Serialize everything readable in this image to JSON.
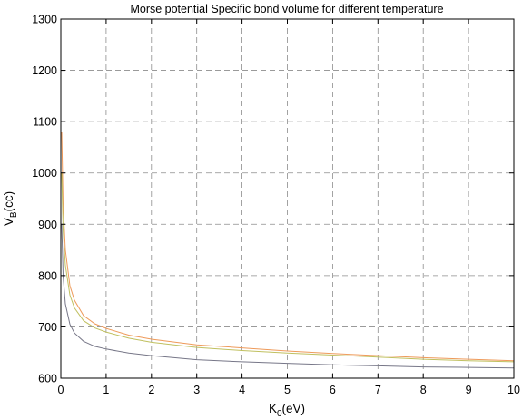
{
  "chart_data": {
    "type": "line",
    "title": "Morse potential Specific bond volume for different temperature",
    "xlabel": {
      "main": "K",
      "sub": "0",
      "unit": "(eV)"
    },
    "ylabel": {
      "main": "V",
      "sub": "B",
      "unit": "(cc)"
    },
    "xlim": [
      0,
      10
    ],
    "ylim": [
      600,
      1300
    ],
    "xticks": [
      0,
      1,
      2,
      3,
      4,
      5,
      6,
      7,
      8,
      9,
      10
    ],
    "yticks": [
      600,
      700,
      800,
      900,
      1000,
      1100,
      1200,
      1300
    ],
    "grid": true,
    "legend": "none",
    "series": [
      {
        "color": "#ee9a5a",
        "x": [
          0.02,
          0.05,
          0.1,
          0.2,
          0.3,
          0.5,
          0.75,
          1,
          1.5,
          2,
          3,
          4,
          5,
          6,
          7,
          8,
          9,
          10
        ],
        "y": [
          1080,
          940,
          850,
          780,
          752,
          722,
          706,
          697,
          684,
          676,
          665,
          659,
          653,
          648,
          644,
          640,
          637,
          634
        ]
      },
      {
        "color": "#c0c060",
        "x": [
          0.02,
          0.05,
          0.1,
          0.2,
          0.3,
          0.5,
          0.75,
          1,
          1.5,
          2,
          3,
          4,
          5,
          6,
          7,
          8,
          9,
          10
        ],
        "y": [
          1000,
          890,
          820,
          762,
          737,
          712,
          698,
          690,
          678,
          670,
          660,
          654,
          649,
          645,
          641,
          637,
          634,
          632
        ]
      },
      {
        "color": "#777788",
        "x": [
          0.02,
          0.05,
          0.1,
          0.2,
          0.3,
          0.5,
          0.75,
          1,
          1.5,
          2,
          3,
          4,
          5,
          6,
          7,
          8,
          9,
          10
        ],
        "y": [
          900,
          800,
          745,
          705,
          688,
          672,
          662,
          657,
          649,
          644,
          636,
          632,
          629,
          626,
          624,
          622,
          621,
          620
        ]
      }
    ]
  }
}
